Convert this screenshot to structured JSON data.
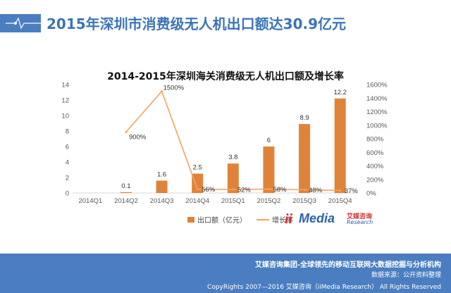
{
  "header": {
    "title": "2015年深圳市消费级无人机出口额达30.9亿元"
  },
  "chart_data": {
    "type": "bar",
    "title": "2014-2015年深圳海关消费级无人机出口额及增长率",
    "categories": [
      "2014Q1",
      "2014Q2",
      "2014Q3",
      "2014Q4",
      "2015Q1",
      "2015Q2",
      "2015Q3",
      "2015Q4"
    ],
    "series": [
      {
        "name": "出口额（亿元）",
        "type": "bar",
        "axis": "left",
        "values": [
          0,
          0.1,
          1.6,
          2.5,
          3.8,
          6,
          8.9,
          12.2
        ],
        "labels": [
          "",
          "0.1",
          "1.6",
          "2.5",
          "3.8",
          "6",
          "8.9",
          "12.2"
        ]
      },
      {
        "name": "增长率",
        "type": "line",
        "axis": "right",
        "values": [
          null,
          900,
          1500,
          56,
          52,
          58,
          48,
          37
        ],
        "labels": [
          "",
          "900%",
          "1500%",
          "56%",
          "52%",
          "58%",
          "48%",
          "37%"
        ]
      }
    ],
    "y_left": {
      "min": 0,
      "max": 14,
      "ticks": [
        "0",
        "2",
        "4",
        "6",
        "8",
        "10",
        "12",
        "14"
      ]
    },
    "y_right": {
      "min": 0,
      "max": 1600,
      "ticks": [
        "0%",
        "200%",
        "400%",
        "600%",
        "800%",
        "1000%",
        "1200%",
        "1400%",
        "1600%"
      ]
    },
    "legend": {
      "position": "bottom",
      "bar_label": "出口额（亿元）",
      "line_label": "增长率"
    },
    "colors": {
      "bar": "#e0833a",
      "line": "#f5a25f",
      "axis": "#d9d9d9",
      "text": "#595959"
    }
  },
  "logo": {
    "mark": "ii",
    "brand": "Media",
    "cn": "艾媒咨询",
    "en": "Research"
  },
  "footer": {
    "slogan": "艾媒咨询集团-全球领先的移动互联网大数据挖掘与分析机构",
    "source": "数据来源：公开资料整理",
    "copyright": "CopyRights 2007—2016 艾媒咨询（iiMedia Research） All Rights Reserved"
  }
}
